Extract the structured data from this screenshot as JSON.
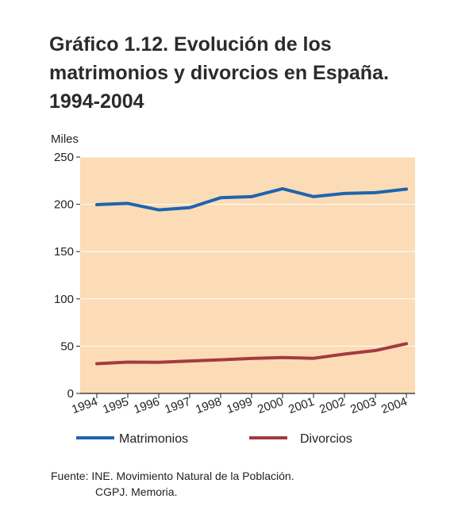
{
  "title": "Gráfico 1.12. Evolución de los\nmatrimonios y divorcios en España.\n1994-2004",
  "source": {
    "line1": "Fuente: INE. Movimiento Natural de la Población.",
    "line2": "CGPJ. Memoria."
  },
  "colors": {
    "plot_background": "#fbdcb6",
    "matrimonios": "#1f64ad",
    "divorcios": "#a23b40",
    "grid": "#ffffff",
    "axis": "#222222"
  },
  "chart_data": {
    "type": "line",
    "title": "Gráfico 1.12. Evolución de los matrimonios y divorcios en España. 1994-2004",
    "ylabel": "Miles",
    "xlabel": "",
    "x": [
      "1994",
      "1995",
      "1996",
      "1997",
      "1998",
      "1999",
      "2000",
      "2001",
      "2002",
      "2003",
      "2004"
    ],
    "ylim": [
      0,
      250
    ],
    "yticks": [
      0,
      50,
      100,
      150,
      200,
      250
    ],
    "grid": true,
    "legend_position": "bottom",
    "series": [
      {
        "name": "Matrimonios",
        "color": "#1f64ad",
        "values": [
          199.7,
          201.0,
          194.1,
          196.5,
          207.0,
          208.1,
          216.5,
          208.1,
          211.5,
          212.3,
          216.1
        ]
      },
      {
        "name": "Divorcios",
        "color": "#a23b40",
        "values": [
          31.5,
          33.1,
          32.9,
          34.3,
          35.6,
          37.0,
          38.0,
          37.2,
          41.6,
          45.4,
          52.6
        ]
      }
    ]
  }
}
